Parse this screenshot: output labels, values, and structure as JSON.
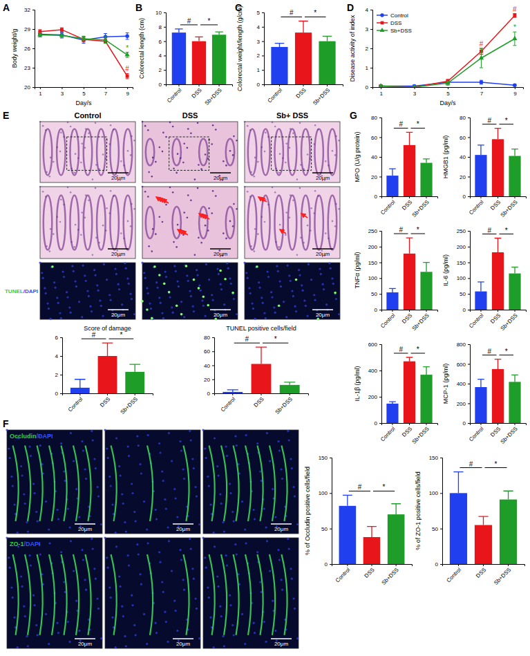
{
  "chart_data": [
    {
      "type": "line",
      "y_label": "Body weight/g",
      "x_label": "Day/s",
      "x": [
        1,
        3,
        5,
        7,
        9
      ],
      "xlim": [
        0.5,
        9.5
      ],
      "xticks": [
        1,
        3,
        5,
        7,
        9
      ],
      "ylim": [
        20,
        32
      ],
      "yticks": [
        20,
        23,
        26,
        29,
        32
      ],
      "series": [
        {
          "name": "Control",
          "color": "#2040f0",
          "marker": "circle",
          "values": [
            28.2,
            28.1,
            27.3,
            27.8,
            27.9
          ],
          "errors": [
            0.4,
            0.4,
            0.5,
            0.5,
            0.5
          ]
        },
        {
          "name": "DSS",
          "color": "#e8161b",
          "marker": "square",
          "values": [
            28.6,
            28.9,
            27.4,
            27.1,
            21.7
          ],
          "errors": [
            0.3,
            0.3,
            0.4,
            0.3,
            0.4
          ]
        },
        {
          "name": "Sb+DSS",
          "color": "#1e9e28",
          "marker": "triangle",
          "values": [
            28.1,
            28.0,
            27.5,
            27.3,
            25.0
          ],
          "errors": [
            0.3,
            0.4,
            0.4,
            0.5,
            0.4
          ]
        }
      ],
      "annotations": [
        {
          "text": "*",
          "x": 9,
          "series": "Sb+DSS"
        },
        {
          "text": "#",
          "x": 9,
          "series": "DSS"
        }
      ]
    },
    {
      "type": "bar",
      "y_label": "Colorectal length (cm)",
      "categories": [
        "Control",
        "DSS",
        "Sb+DSS"
      ],
      "values": [
        7.2,
        6.0,
        6.9
      ],
      "errors": [
        0.5,
        0.6,
        0.4
      ],
      "colors": [
        "#2040f0",
        "#e8161b",
        "#1e9e28"
      ],
      "ylim": [
        0,
        10
      ],
      "yticks": [
        0,
        2,
        4,
        6,
        8,
        10
      ],
      "significance": [
        {
          "label": "#",
          "pair": [
            "Control",
            "DSS"
          ]
        },
        {
          "label": "*",
          "pair": [
            "DSS",
            "Sb+DSS"
          ]
        }
      ]
    },
    {
      "type": "bar",
      "y_label": "Colorectal weight/length (g/cm)",
      "categories": [
        "Control",
        "DSS",
        "Sb+DSS"
      ],
      "values": [
        2.6,
        3.6,
        3.0
      ],
      "errors": [
        0.25,
        0.8,
        0.35
      ],
      "colors": [
        "#2040f0",
        "#e8161b",
        "#1e9e28"
      ],
      "ylim": [
        0,
        5
      ],
      "yticks": [
        0,
        1,
        2,
        3,
        4,
        5
      ],
      "significance": [
        {
          "label": "#",
          "pair": [
            "Control",
            "DSS"
          ]
        },
        {
          "label": "*",
          "pair": [
            "DSS",
            "Sb+DSS"
          ]
        }
      ]
    },
    {
      "type": "line",
      "y_label": "Disease activity of index",
      "x_label": "Day/s",
      "legend": "top-left",
      "x": [
        1,
        3,
        5,
        7,
        9
      ],
      "xlim": [
        0.5,
        9.5
      ],
      "xticks": [
        1,
        3,
        5,
        7,
        9
      ],
      "ylim": [
        0,
        4
      ],
      "yticks": [
        0,
        1,
        2,
        3,
        4
      ],
      "series": [
        {
          "name": "Control",
          "color": "#2040f0",
          "marker": "circle",
          "values": [
            0.05,
            0.05,
            0.25,
            0.25,
            0.1
          ],
          "errors": [
            0.05,
            0.05,
            0.1,
            0.1,
            0.05
          ]
        },
        {
          "name": "DSS",
          "color": "#e8161b",
          "marker": "square",
          "values": [
            0.05,
            0.0,
            0.3,
            1.85,
            3.7
          ],
          "errors": [
            0.05,
            0.05,
            0.1,
            0.15,
            0.1
          ]
        },
        {
          "name": "Sb+DSS",
          "color": "#1e9e28",
          "marker": "triangle",
          "values": [
            0.05,
            0.0,
            0.2,
            1.5,
            2.5
          ],
          "errors": [
            0.05,
            0.05,
            0.1,
            0.5,
            0.35
          ]
        }
      ],
      "annotations": [
        {
          "text": "#",
          "x": 7,
          "series": "DSS"
        },
        {
          "text": "#",
          "x": 9,
          "series": "DSS"
        },
        {
          "text": "*",
          "x": 9,
          "series": "Sb+DSS"
        }
      ]
    },
    {
      "type": "bar",
      "title": "Score of damage",
      "categories": [
        "Control",
        "DSS",
        "Sb+DSS"
      ],
      "values": [
        0.6,
        4.0,
        2.3
      ],
      "errors": [
        0.9,
        1.4,
        0.8
      ],
      "colors": [
        "#2040f0",
        "#e8161b",
        "#1e9e28"
      ],
      "ylim": [
        0,
        6
      ],
      "yticks": [
        0,
        2,
        4,
        6
      ],
      "significance": [
        {
          "label": "#",
          "pair": [
            "Control",
            "DSS"
          ]
        },
        {
          "label": "*",
          "pair": [
            "DSS",
            "Sb+DSS"
          ]
        }
      ]
    },
    {
      "type": "bar",
      "title": "TUNEL positive cells/field",
      "categories": [
        "Control",
        "DSS",
        "Sb+DSS"
      ],
      "values": [
        2,
        42,
        12
      ],
      "errors": [
        3,
        24,
        4
      ],
      "colors": [
        "#2040f0",
        "#e8161b",
        "#1e9e28"
      ],
      "ylim": [
        0,
        80
      ],
      "yticks": [
        0,
        20,
        40,
        60,
        80
      ],
      "significance": [
        {
          "label": "#",
          "pair": [
            "Control",
            "DSS"
          ]
        },
        {
          "label": "*",
          "pair": [
            "DSS",
            "Sb+DSS"
          ]
        }
      ]
    },
    {
      "type": "bar",
      "y_label": "% of Occludin positive cells/field",
      "categories": [
        "Control",
        "DSS",
        "Sb+DSS"
      ],
      "values": [
        82,
        38,
        70
      ],
      "errors": [
        15,
        15,
        15
      ],
      "colors": [
        "#2040f0",
        "#e8161b",
        "#1e9e28"
      ],
      "ylim": [
        0,
        150
      ],
      "yticks": [
        0,
        50,
        100,
        150
      ],
      "significance": [
        {
          "label": "#",
          "pair": [
            "Control",
            "DSS"
          ]
        },
        {
          "label": "*",
          "pair": [
            "DSS",
            "Sb+DSS"
          ]
        }
      ]
    },
    {
      "type": "bar",
      "y_label": "% of ZO-1 positive cells/field",
      "categories": [
        "Control",
        "DSS",
        "Sb+DSS"
      ],
      "values": [
        100,
        55,
        91
      ],
      "errors": [
        30,
        12,
        12
      ],
      "colors": [
        "#2040f0",
        "#e8161b",
        "#1e9e28"
      ],
      "ylim": [
        0,
        150
      ],
      "yticks": [
        0,
        50,
        100,
        150
      ],
      "significance": [
        {
          "label": "#",
          "pair": [
            "Control",
            "DSS"
          ]
        },
        {
          "label": "*",
          "pair": [
            "DSS",
            "Sb+DSS"
          ]
        }
      ]
    },
    {
      "type": "bar",
      "y_label": "MPO (U/g protein)",
      "categories": [
        "Control",
        "DSS",
        "Sb+DSS"
      ],
      "values": [
        21,
        52,
        34
      ],
      "errors": [
        7,
        13,
        4
      ],
      "colors": [
        "#2040f0",
        "#e8161b",
        "#1e9e28"
      ],
      "ylim": [
        0,
        80
      ],
      "yticks": [
        0,
        20,
        40,
        60,
        80
      ],
      "significance": [
        {
          "label": "#",
          "pair": [
            "Control",
            "DSS"
          ]
        },
        {
          "label": "*",
          "pair": [
            "DSS",
            "Sb+DSS"
          ]
        }
      ]
    },
    {
      "type": "bar",
      "y_label": "HMGB1 (pg/ml)",
      "categories": [
        "Control",
        "DSS",
        "Sb+DSS"
      ],
      "values": [
        42,
        58,
        41
      ],
      "errors": [
        10,
        11,
        7
      ],
      "colors": [
        "#2040f0",
        "#e8161b",
        "#1e9e28"
      ],
      "ylim": [
        0,
        80
      ],
      "yticks": [
        0,
        20,
        40,
        60,
        80
      ],
      "significance": [
        {
          "label": "#",
          "pair": [
            "Control",
            "DSS"
          ]
        },
        {
          "label": "*",
          "pair": [
            "DSS",
            "Sb+DSS"
          ]
        }
      ]
    },
    {
      "type": "bar",
      "y_label": "TNFα (pg/ml)",
      "categories": [
        "Control",
        "DSS",
        "Sb+DSS"
      ],
      "values": [
        55,
        178,
        120
      ],
      "errors": [
        12,
        50,
        30
      ],
      "colors": [
        "#2040f0",
        "#e8161b",
        "#1e9e28"
      ],
      "ylim": [
        0,
        250
      ],
      "yticks": [
        0,
        50,
        100,
        150,
        200,
        250
      ],
      "significance": [
        {
          "label": "#",
          "pair": [
            "Control",
            "DSS"
          ]
        },
        {
          "label": "*",
          "pair": [
            "DSS",
            "Sb+DSS"
          ]
        }
      ]
    },
    {
      "type": "bar",
      "y_label": "IL-6 (pg/ml)",
      "categories": [
        "Control",
        "DSS",
        "Sb+DSS"
      ],
      "values": [
        58,
        182,
        115
      ],
      "errors": [
        30,
        45,
        20
      ],
      "colors": [
        "#2040f0",
        "#e8161b",
        "#1e9e28"
      ],
      "ylim": [
        0,
        250
      ],
      "yticks": [
        0,
        50,
        100,
        150,
        200,
        250
      ],
      "significance": [
        {
          "label": "#",
          "pair": [
            "Control",
            "DSS"
          ]
        },
        {
          "label": "*",
          "pair": [
            "DSS",
            "Sb+DSS"
          ]
        }
      ]
    },
    {
      "type": "bar",
      "y_label": "IL-1β (pg/ml)",
      "categories": [
        "Control",
        "DSS",
        "Sb+DSS"
      ],
      "values": [
        148,
        470,
        368
      ],
      "errors": [
        15,
        30,
        60
      ],
      "colors": [
        "#2040f0",
        "#e8161b",
        "#1e9e28"
      ],
      "ylim": [
        0,
        600
      ],
      "yticks": [
        0,
        200,
        400,
        600
      ],
      "significance": [
        {
          "label": "#",
          "pair": [
            "Control",
            "DSS"
          ]
        },
        {
          "label": "*",
          "pair": [
            "DSS",
            "Sb+DSS"
          ]
        }
      ]
    },
    {
      "type": "bar",
      "y_label": "MCP-1 (pg/ml)",
      "categories": [
        "Control",
        "DSS",
        "Sb+DSS"
      ],
      "values": [
        365,
        548,
        418
      ],
      "errors": [
        80,
        100,
        70
      ],
      "colors": [
        "#2040f0",
        "#e8161b",
        "#1e9e28"
      ],
      "ylim": [
        0,
        800
      ],
      "yticks": [
        0,
        200,
        400,
        600,
        800
      ],
      "significance": [
        {
          "label": "#",
          "pair": [
            "Control",
            "DSS"
          ]
        },
        {
          "label": "*",
          "pair": [
            "DSS",
            "Sb+DSS"
          ]
        }
      ]
    }
  ],
  "figure": {
    "panels": [
      "A",
      "B",
      "C",
      "D",
      "E",
      "F",
      "G"
    ],
    "columns": [
      "Control",
      "DSS",
      "Sb+ DSS"
    ],
    "stains": [
      "TUNEL/DAPI",
      "Occludin/DAPI",
      "ZO-1/DAPI"
    ],
    "scale_bar": "20μm"
  }
}
